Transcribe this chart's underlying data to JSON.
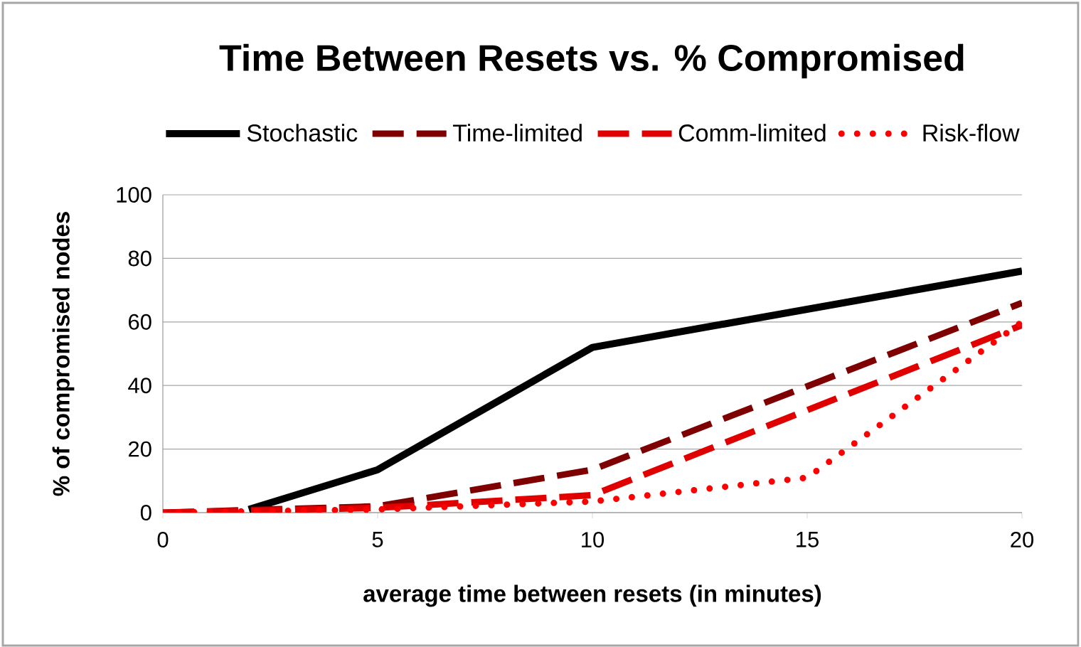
{
  "chart_data": {
    "type": "line",
    "title": "Time Between Resets vs. % Compromised",
    "xlabel": "average time between resets (in minutes)",
    "ylabel": "% of compromised nodes",
    "xlim": [
      0,
      20
    ],
    "ylim": [
      0,
      100
    ],
    "xticks": [
      0,
      5,
      10,
      15,
      20
    ],
    "yticks": [
      0,
      20,
      40,
      60,
      80,
      100
    ],
    "grid": "y",
    "legend": "top",
    "marker": "none",
    "series": [
      {
        "name": "Stochastic",
        "color": "#000000",
        "line_style": "solid",
        "x": [
          2,
          5,
          10,
          20
        ],
        "values": [
          1,
          13.5,
          52,
          76
        ]
      },
      {
        "name": "Time-limited",
        "color": "#7f0000",
        "line_style": "dashed",
        "x": [
          0,
          5,
          10,
          20
        ],
        "values": [
          0,
          2,
          13.5,
          66
        ]
      },
      {
        "name": "Comm-limited",
        "color": "#e00000",
        "line_style": "dashed",
        "x": [
          0,
          5,
          10,
          20
        ],
        "values": [
          0,
          1.5,
          5.5,
          59
        ]
      },
      {
        "name": "Risk-flow",
        "color": "#ff0000",
        "line_style": "dotted",
        "x": [
          0,
          5,
          10,
          15,
          20
        ],
        "values": [
          0,
          1,
          3.5,
          11,
          60
        ]
      }
    ]
  }
}
